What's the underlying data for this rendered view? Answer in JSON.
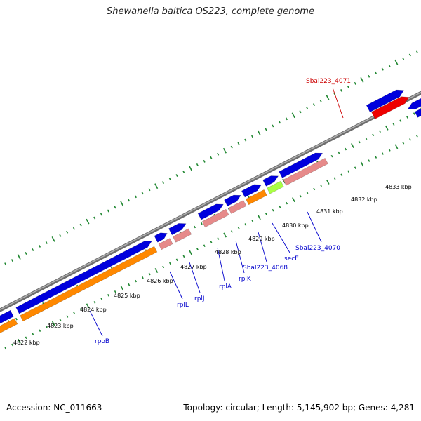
{
  "header": {
    "title": "Shewanella baltica OS223, complete genome"
  },
  "footer": {
    "accession": "Accession: NC_011663",
    "summary": "Topology: circular; Length: 5,145,902 bp; Genes: 4,281"
  },
  "colors": {
    "backbone": "#8c8c8c",
    "cds": "#0000dd",
    "rrna_like": "#e68a8a",
    "orange": "#ff8800",
    "lime": "#aaff44",
    "green_dark": "#668800",
    "highlight": "#ee0000",
    "label_blue": "#0000cc",
    "label_red": "#cc0000",
    "tick": "#228833"
  },
  "kbp_labels": [
    "4822 kbp",
    "4823 kbp",
    "4824 kbp",
    "4825 kbp",
    "4826 kbp",
    "4827 kbp",
    "4828 kbp",
    "4829 kbp",
    "4830 kbp",
    "4831 kbp",
    "4832 kbp",
    "4833 kbp"
  ],
  "gene_labels": [
    {
      "text": "rpoB",
      "highlight": false
    },
    {
      "text": "rplL",
      "highlight": false
    },
    {
      "text": "rplJ",
      "highlight": false
    },
    {
      "text": "rplA",
      "highlight": false
    },
    {
      "text": "rplK",
      "highlight": false
    },
    {
      "text": "Sbal223_4068",
      "highlight": false
    },
    {
      "text": "secE",
      "highlight": false
    },
    {
      "text": "Sbal223_4070",
      "highlight": false
    },
    {
      "text": "Sbal223_4071",
      "highlight": true
    }
  ]
}
